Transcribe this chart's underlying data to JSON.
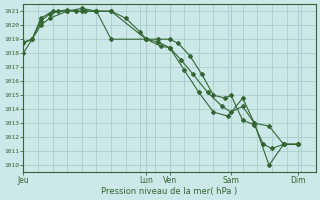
{
  "xlabel": "Pression niveau de la mer( hPa )",
  "bg_color": "#cce8e8",
  "grid_color": "#aacccc",
  "line_color": "#336633",
  "ylim": [
    1009.5,
    1021.5
  ],
  "xlim": [
    0,
    10.0
  ],
  "yticks": [
    1010,
    1011,
    1012,
    1013,
    1014,
    1015,
    1016,
    1017,
    1018,
    1019,
    1020,
    1021
  ],
  "xtick_labels": [
    "Jeu",
    "Lun",
    "Ven",
    "Sam",
    "Dim"
  ],
  "xtick_positions": [
    0.0,
    4.2,
    5.0,
    7.1,
    9.4
  ],
  "minor_xgrid_count": 20,
  "series1_x": [
    0.0,
    0.6,
    0.9,
    1.5,
    2.0,
    2.5,
    3.0,
    4.2,
    4.7,
    5.0,
    5.5,
    6.0,
    6.5,
    7.0,
    7.5,
    7.9,
    8.4,
    8.9,
    9.4
  ],
  "series1_y": [
    1018.0,
    1020.0,
    1020.5,
    1021.0,
    1021.2,
    1021.0,
    1021.0,
    1019.0,
    1018.5,
    1018.4,
    1016.8,
    1015.2,
    1013.8,
    1013.5,
    1014.8,
    1013.0,
    1010.0,
    1011.5,
    1011.5
  ],
  "series2_x": [
    0.0,
    0.3,
    0.6,
    1.0,
    1.5,
    2.0,
    2.5,
    3.0,
    4.2,
    4.6,
    5.0,
    5.4,
    5.8,
    6.3,
    6.8,
    7.1,
    7.5,
    7.9,
    8.4,
    8.9,
    9.4
  ],
  "series2_y": [
    1018.7,
    1019.0,
    1020.5,
    1021.0,
    1021.0,
    1021.0,
    1021.0,
    1019.0,
    1019.0,
    1018.8,
    1018.4,
    1017.5,
    1016.5,
    1015.2,
    1014.2,
    1013.8,
    1014.2,
    1013.0,
    1012.8,
    1011.5,
    1011.5
  ],
  "series3_x": [
    0.0,
    0.3,
    0.6,
    0.9,
    1.2,
    1.5,
    1.8,
    2.1,
    2.5,
    3.0,
    3.5,
    4.0,
    4.2,
    4.6,
    5.0,
    5.3,
    5.7,
    6.1,
    6.5,
    6.9,
    7.1,
    7.5,
    7.9,
    8.2,
    8.5,
    8.9,
    9.4
  ],
  "series3_y": [
    1018.8,
    1019.0,
    1020.3,
    1020.8,
    1021.0,
    1021.1,
    1021.0,
    1021.0,
    1021.0,
    1021.0,
    1020.5,
    1019.5,
    1019.0,
    1019.0,
    1019.0,
    1018.7,
    1017.8,
    1016.5,
    1015.0,
    1014.8,
    1015.0,
    1013.2,
    1012.9,
    1011.5,
    1011.2,
    1011.5,
    1011.5
  ]
}
